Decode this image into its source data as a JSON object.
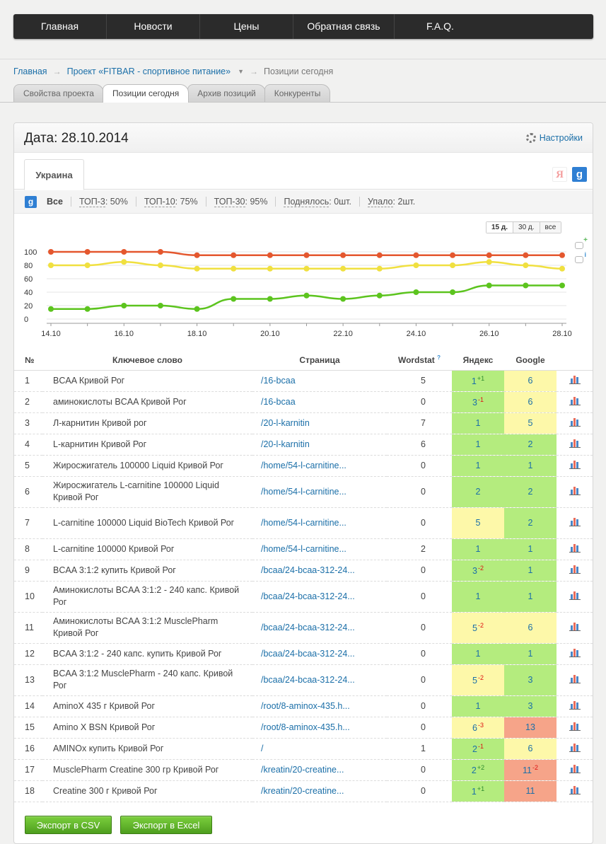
{
  "nav": [
    "Главная",
    "Новости",
    "Цены",
    "Обратная связь",
    "F.A.Q."
  ],
  "breadcrumb": {
    "home": "Главная",
    "project": "Проект «FITBAR - спортивное питание»",
    "current": "Позиции сегодня"
  },
  "page_tabs": [
    "Свойства проекта",
    "Позиции сегодня",
    "Архив позиций",
    "Конкуренты"
  ],
  "panel": {
    "date_title": "Дата: 28.10.2014",
    "settings_label": "Настройки",
    "region_tab": "Украина",
    "yandex_icon": "Я",
    "google_icon": "g"
  },
  "stats": {
    "all": "Все",
    "top3_label": "ТОП-3",
    "top3_value": ": 50%",
    "top10_label": "ТОП-10",
    "top10_value": ": 75%",
    "top30_label": "ТОП-30",
    "top30_value": ": 95%",
    "up_label": "Поднялось",
    "up_value": ": 0шт.",
    "down_label": "Упало",
    "down_value": ": 2шт."
  },
  "periods": [
    "15 д.",
    "30 д.",
    "все"
  ],
  "chart_data": {
    "type": "line",
    "x": [
      "14.10",
      "15.10",
      "16.10",
      "17.10",
      "18.10",
      "19.10",
      "20.10",
      "21.10",
      "22.10",
      "23.10",
      "24.10",
      "25.10",
      "26.10",
      "27.10",
      "28.10"
    ],
    "xtick_labels": [
      "14.10",
      "16.10",
      "18.10",
      "20.10",
      "22.10",
      "24.10",
      "26.10",
      "28.10"
    ],
    "ylim": [
      0,
      100
    ],
    "yticks": [
      0,
      20,
      40,
      60,
      80,
      100
    ],
    "grid": true,
    "series": [
      {
        "color": "#e4572e",
        "values": [
          100,
          100,
          100,
          100,
          95,
          95,
          95,
          95,
          95,
          95,
          95,
          95,
          95,
          95,
          95
        ]
      },
      {
        "color": "#f0e040",
        "values": [
          80,
          80,
          85,
          80,
          75,
          75,
          75,
          75,
          75,
          75,
          80,
          80,
          85,
          80,
          75
        ]
      },
      {
        "color": "#5cc41e",
        "values": [
          15,
          15,
          20,
          20,
          15,
          30,
          30,
          35,
          30,
          35,
          40,
          40,
          50,
          50,
          50
        ]
      }
    ]
  },
  "table": {
    "headers": {
      "num": "№",
      "keyword": "Ключевое слово",
      "page": "Страница",
      "wordstat": "Wordstat",
      "wordstat_q": "?",
      "yandex": "Яндекс",
      "google": "Google"
    },
    "rows": [
      {
        "num": "1",
        "kw": "BCAA Кривой Рог",
        "page": "/16-bcaa",
        "ws": "5",
        "y": "1",
        "yc": "+1",
        "yclr": "g",
        "g": "6",
        "gc": "",
        "gclr": "y"
      },
      {
        "num": "2",
        "kw": "аминокислоты BCAA Кривой Рог",
        "page": "/16-bcaa",
        "ws": "0",
        "y": "3",
        "yc": "-1",
        "yclr": "g",
        "g": "6",
        "gc": "",
        "gclr": "y"
      },
      {
        "num": "3",
        "kw": "Л-карнитин Кривой рог",
        "page": "/20-l-karnitin",
        "ws": "7",
        "y": "1",
        "yc": "",
        "yclr": "g",
        "g": "5",
        "gc": "",
        "gclr": "y"
      },
      {
        "num": "4",
        "kw": "L-карнитин Кривой Рог",
        "page": "/20-l-karnitin",
        "ws": "6",
        "y": "1",
        "yc": "",
        "yclr": "g",
        "g": "2",
        "gc": "",
        "gclr": "g"
      },
      {
        "num": "5",
        "kw": "Жиросжигатель 100000 Liquid Кривой Рог",
        "page": "/home/54-l-carnitine...",
        "ws": "0",
        "y": "1",
        "yc": "",
        "yclr": "g",
        "g": "1",
        "gc": "",
        "gclr": "g"
      },
      {
        "num": "6",
        "kw": "Жиросжигатель L-carnitine 100000 Liquid Кривой Рог",
        "page": "/home/54-l-carnitine...",
        "ws": "0",
        "y": "2",
        "yc": "",
        "yclr": "g",
        "g": "2",
        "gc": "",
        "gclr": "g"
      },
      {
        "num": "7",
        "kw": "L-carnitine 100000 Liquid BioTech Кривой Рог",
        "page": "/home/54-l-carnitine...",
        "ws": "0",
        "y": "5",
        "yc": "",
        "yclr": "y",
        "g": "2",
        "gc": "",
        "gclr": "g"
      },
      {
        "num": "8",
        "kw": "L-carnitine 100000 Кривой Рог",
        "page": "/home/54-l-carnitine...",
        "ws": "2",
        "y": "1",
        "yc": "",
        "yclr": "g",
        "g": "1",
        "gc": "",
        "gclr": "g"
      },
      {
        "num": "9",
        "kw": "BCAA 3:1:2 купить Кривой Рог",
        "page": "/bcaa/24-bcaa-312-24...",
        "ws": "0",
        "y": "3",
        "yc": "-2",
        "yclr": "g",
        "g": "1",
        "gc": "",
        "gclr": "g"
      },
      {
        "num": "10",
        "kw": "Аминокислоты BCAA 3:1:2 - 240 капс. Кривой Рог",
        "page": "/bcaa/24-bcaa-312-24...",
        "ws": "0",
        "y": "1",
        "yc": "",
        "yclr": "g",
        "g": "1",
        "gc": "",
        "gclr": "g"
      },
      {
        "num": "11",
        "kw": "Аминокислоты BCAA 3:1:2 MusclePharm Кривой Рог",
        "page": "/bcaa/24-bcaa-312-24...",
        "ws": "0",
        "y": "5",
        "yc": "-2",
        "yclr": "y",
        "g": "6",
        "gc": "",
        "gclr": "y"
      },
      {
        "num": "12",
        "kw": "BCAA 3:1:2 - 240 капс. купить Кривой Рог",
        "page": "/bcaa/24-bcaa-312-24...",
        "ws": "0",
        "y": "1",
        "yc": "",
        "yclr": "g",
        "g": "1",
        "gc": "",
        "gclr": "g"
      },
      {
        "num": "13",
        "kw": "BCAA 3:1:2 MusclePharm - 240 капс. Кривой Рог",
        "page": "/bcaa/24-bcaa-312-24...",
        "ws": "0",
        "y": "5",
        "yc": "-2",
        "yclr": "y",
        "g": "3",
        "gc": "",
        "gclr": "g"
      },
      {
        "num": "14",
        "kw": "AminoX 435 г Кривой Рог",
        "page": "/root/8-aminox-435.h...",
        "ws": "0",
        "y": "1",
        "yc": "",
        "yclr": "g",
        "g": "3",
        "gc": "",
        "gclr": "g"
      },
      {
        "num": "15",
        "kw": "Amino X BSN Кривой Рог",
        "page": "/root/8-aminox-435.h...",
        "ws": "0",
        "y": "6",
        "yc": "-3",
        "yclr": "y",
        "g": "13",
        "gc": "",
        "gclr": "r"
      },
      {
        "num": "16",
        "kw": "AMINOx купить Кривой Рог",
        "page": "/",
        "ws": "1",
        "y": "2",
        "yc": "-1",
        "yclr": "g",
        "g": "6",
        "gc": "",
        "gclr": "y"
      },
      {
        "num": "17",
        "kw": "MusclePharm Creatine 300 гр Кривой Рог",
        "page": "/kreatin/20-creatine...",
        "ws": "0",
        "y": "2",
        "yc": "+2",
        "yclr": "g",
        "g": "11",
        "gc": "-2",
        "gclr": "r"
      },
      {
        "num": "18",
        "kw": "Creatine 300 г Кривой Рог",
        "page": "/kreatin/20-creatine...",
        "ws": "0",
        "y": "1",
        "yc": "+1",
        "yclr": "g",
        "g": "11",
        "gc": "",
        "gclr": "r"
      }
    ]
  },
  "buttons": {
    "csv": "Экспорт в CSV",
    "excel": "Экспорт в Excel"
  }
}
